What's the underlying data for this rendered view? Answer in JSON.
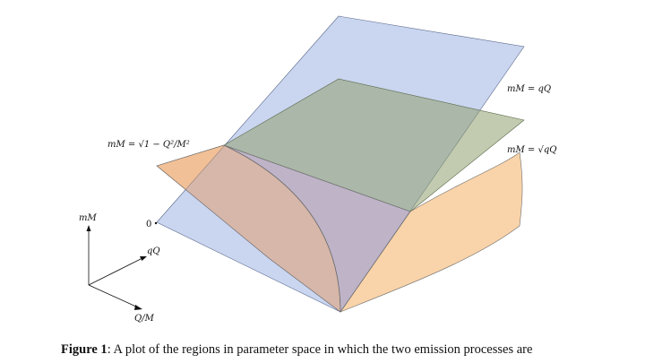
{
  "figure": {
    "labels": {
      "mM_eq_sqrt": "mM = √1 − Q²/M²",
      "mM_eq_qQ": "mM = qQ",
      "mM_eq_sqrt_qQ": "mM = √qQ",
      "zero": "0",
      "axis_mM": "mM",
      "axis_qQ": "qQ",
      "axis_QM": "Q/M"
    },
    "colors": {
      "blue_plane": "#a6b9e6",
      "green_plane": "#9aa778",
      "orange_surface": "#f7c48c",
      "edge": "#555555"
    }
  },
  "caption": {
    "label": "Figure 1",
    "text": ": A plot of the regions in parameter space in which the two emission processes are"
  }
}
